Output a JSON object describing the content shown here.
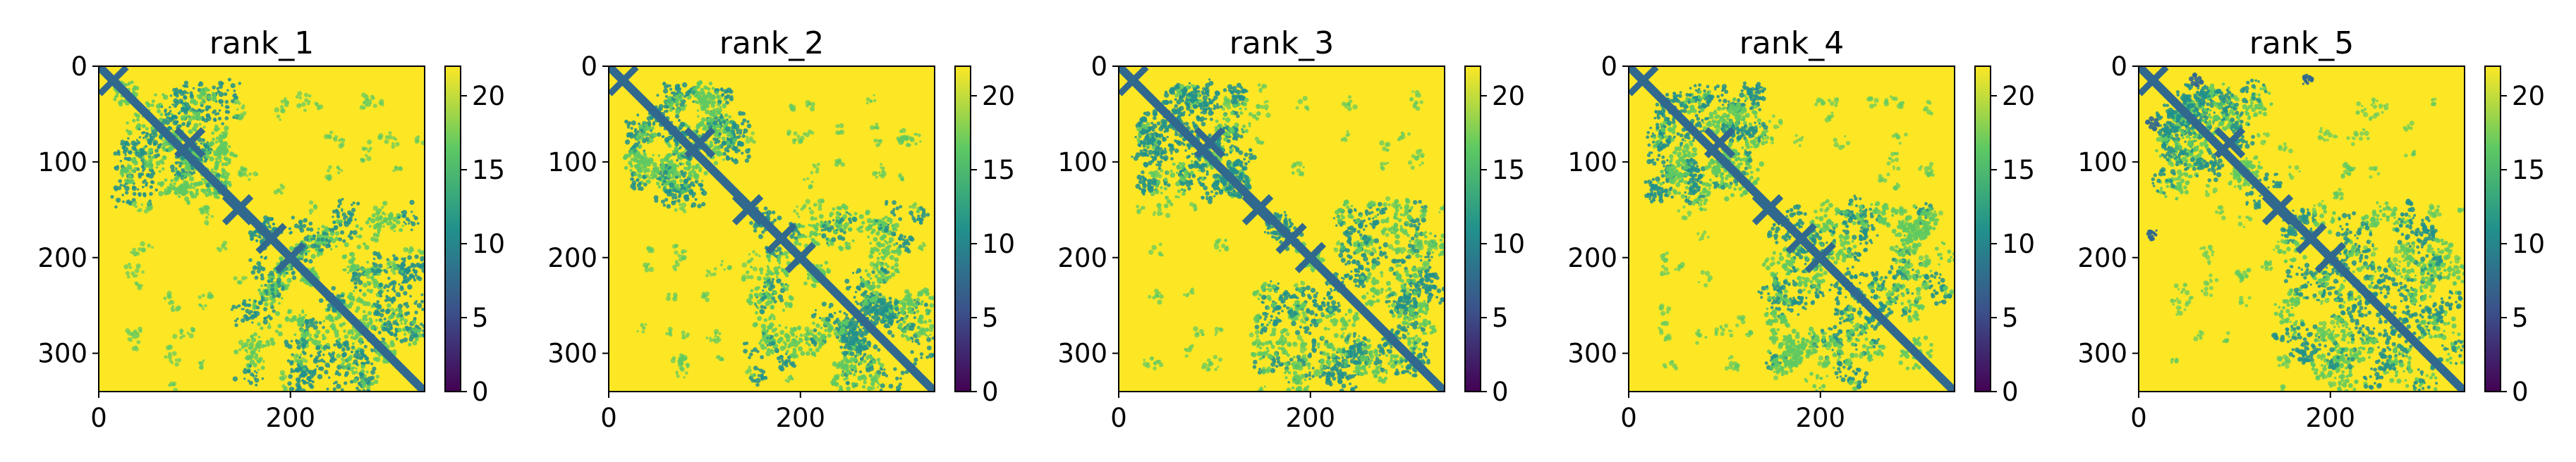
{
  "chart_data": [
    {
      "type": "heatmap",
      "title": "rank_1",
      "x_ticks": [
        "0",
        "200"
      ],
      "y_ticks": [
        "0",
        "100",
        "200",
        "300"
      ],
      "colorbar_ticks": [
        "0",
        "5",
        "10",
        "15",
        "20"
      ],
      "xlim": [
        0,
        340
      ],
      "ylim": [
        340,
        0
      ],
      "colorbar_range": [
        0,
        22
      ],
      "colormap": "viridis",
      "grid": false
    },
    {
      "type": "heatmap",
      "title": "rank_2",
      "x_ticks": [
        "0",
        "200"
      ],
      "y_ticks": [
        "0",
        "100",
        "200",
        "300"
      ],
      "colorbar_ticks": [
        "0",
        "5",
        "10",
        "15",
        "20"
      ],
      "xlim": [
        0,
        340
      ],
      "ylim": [
        340,
        0
      ],
      "colorbar_range": [
        0,
        22
      ],
      "colormap": "viridis",
      "grid": false
    },
    {
      "type": "heatmap",
      "title": "rank_3",
      "x_ticks": [
        "0",
        "200"
      ],
      "y_ticks": [
        "0",
        "100",
        "200",
        "300"
      ],
      "colorbar_ticks": [
        "0",
        "5",
        "10",
        "15",
        "20"
      ],
      "xlim": [
        0,
        340
      ],
      "ylim": [
        340,
        0
      ],
      "colorbar_range": [
        0,
        22
      ],
      "colormap": "viridis",
      "grid": false
    },
    {
      "type": "heatmap",
      "title": "rank_4",
      "x_ticks": [
        "0",
        "200"
      ],
      "y_ticks": [
        "0",
        "100",
        "200",
        "300"
      ],
      "colorbar_ticks": [
        "0",
        "5",
        "10",
        "15",
        "20"
      ],
      "xlim": [
        0,
        340
      ],
      "ylim": [
        340,
        0
      ],
      "colorbar_range": [
        0,
        22
      ],
      "colormap": "viridis",
      "grid": false
    },
    {
      "type": "heatmap",
      "title": "rank_5",
      "x_ticks": [
        "0",
        "200"
      ],
      "y_ticks": [
        "0",
        "100",
        "200",
        "300"
      ],
      "colorbar_ticks": [
        "0",
        "5",
        "10",
        "15",
        "20"
      ],
      "xlim": [
        0,
        340
      ],
      "ylim": [
        340,
        0
      ],
      "colorbar_range": [
        0,
        22
      ],
      "colormap": "viridis",
      "grid": false
    }
  ],
  "colors": {
    "background": "#fde725",
    "contact_strong": "#31688e",
    "contact_mid": "#21918c",
    "contact_weak": "#5ec962",
    "colormap_stops": [
      "#440154",
      "#3b528b",
      "#21918c",
      "#5ec962",
      "#fde725"
    ]
  }
}
